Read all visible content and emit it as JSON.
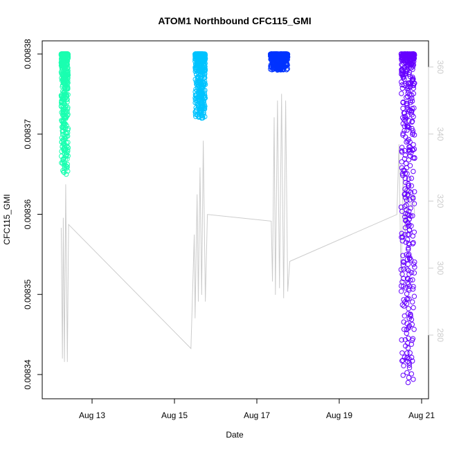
{
  "chart_data": {
    "type": "scatter",
    "title": "ATOM1 Northbound CFC115_GMI",
    "xlabel": "Date",
    "ylabel": "CFC115_GMI",
    "x_ticks": [
      {
        "label": "Aug 13",
        "value": 13
      },
      {
        "label": "Aug 15",
        "value": 15
      },
      {
        "label": "Aug 17",
        "value": 17
      },
      {
        "label": "Aug 19",
        "value": 19
      },
      {
        "label": "Aug 21",
        "value": 21
      }
    ],
    "xlim": [
      12.0,
      21.1
    ],
    "ylim": [
      0.008337,
      0.008381
    ],
    "y_ticks": [
      "0.00834",
      "0.00835",
      "0.00836",
      "0.00837",
      "0.00838"
    ],
    "y2lim": [
      265,
      370
    ],
    "y2_ticks": [
      "280",
      "300",
      "320",
      "340",
      "360"
    ],
    "grid": false,
    "series": [
      {
        "segment": "Aug 12",
        "color": "#1affb0",
        "x_range": [
          12.25,
          12.42
        ],
        "y_min": 0.008365,
        "y_max": 0.00838
      },
      {
        "segment": "Aug 15",
        "color": "#00c3ff",
        "x_range": [
          15.5,
          15.75
        ],
        "y_min": 0.008372,
        "y_max": 0.00838
      },
      {
        "segment": "Aug 17",
        "color": "#0033ff",
        "x_range": [
          17.33,
          17.75
        ],
        "y_min": 0.008378,
        "y_max": 0.00838
      },
      {
        "segment": "Aug 20",
        "color": "#6600ff",
        "x_range": [
          20.5,
          20.83
        ],
        "y_min": 0.008339,
        "y_max": 0.00838
      }
    ],
    "secondary_line": {
      "color": "#cccccc",
      "x": [
        12.25,
        12.28,
        12.3,
        12.33,
        12.36,
        12.4,
        12.43,
        15.4,
        15.48,
        15.5,
        15.55,
        15.58,
        15.62,
        15.66,
        15.7,
        15.75,
        15.8,
        17.35,
        17.38,
        17.42,
        17.45,
        17.5,
        17.55,
        17.6,
        17.65,
        17.7,
        17.75,
        17.8,
        20.4,
        20.45,
        20.5,
        20.55,
        20.6,
        20.65,
        20.7,
        20.75,
        20.8,
        20.83
      ],
      "y": [
        312,
        273,
        315,
        272,
        325,
        272,
        313,
        276,
        310,
        285,
        322,
        290,
        330,
        292,
        338,
        290,
        316,
        314,
        296,
        345,
        292,
        350,
        294,
        352,
        291,
        350,
        293,
        302,
        316,
        337,
        295,
        330,
        310,
        324,
        320,
        318,
        322,
        316
      ]
    }
  }
}
